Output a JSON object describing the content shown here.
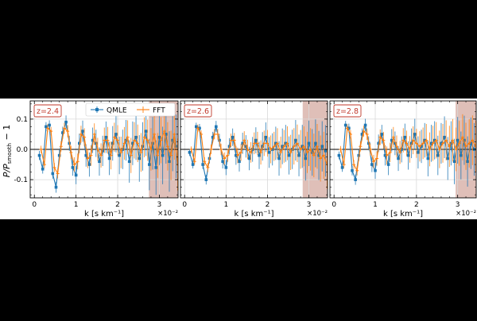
{
  "figure": {
    "background": "#ffffff",
    "ylabel": "P/P_smooth − 1",
    "ylabel_main": "P/P",
    "ylabel_sub": "smooth",
    "ylabel_tail": " − 1"
  },
  "legend": {
    "placement": "top-center of first panel",
    "entries": [
      {
        "name": "QMLE",
        "color": "#1f77b4",
        "marker": "square"
      },
      {
        "name": "FFT",
        "color": "#ff7f0e",
        "marker": "plus"
      }
    ]
  },
  "colors": {
    "qmle": "#1f77b4",
    "fft": "#ff7f0e",
    "shade": "#d4a9a0",
    "label_box": "#c0392b",
    "grid": "#d9d9d9",
    "zero_line": "#000000"
  },
  "chart_data": [
    {
      "type": "line",
      "title": "z=2.4",
      "xlabel": "k [s km⁻¹]",
      "x_multiplier": "×10⁻²",
      "ylabel": "P/P_smooth − 1",
      "xlim": [
        -0.1,
        3.45
      ],
      "ylim": [
        -0.16,
        0.16
      ],
      "xticks": [
        0,
        1,
        2,
        3
      ],
      "yticks": [
        -0.1,
        0.0,
        0.1
      ],
      "shaded_x": [
        2.75,
        3.45
      ],
      "grid": true,
      "series": [
        {
          "name": "QMLE",
          "x": [
            0.12,
            0.2,
            0.28,
            0.36,
            0.44,
            0.52,
            0.6,
            0.68,
            0.76,
            0.84,
            0.92,
            1.0,
            1.08,
            1.16,
            1.24,
            1.32,
            1.4,
            1.48,
            1.56,
            1.64,
            1.72,
            1.8,
            1.88,
            1.96,
            2.04,
            2.12,
            2.2,
            2.28,
            2.36,
            2.44,
            2.52,
            2.6,
            2.68,
            2.76,
            2.84,
            2.92,
            3.0,
            3.08,
            3.16,
            3.24,
            3.32,
            3.4
          ],
          "y": [
            -0.02,
            -0.065,
            0.075,
            0.08,
            -0.08,
            -0.125,
            -0.02,
            0.055,
            0.09,
            0.02,
            -0.06,
            -0.085,
            0.02,
            0.06,
            -0.02,
            -0.05,
            0.03,
            0.02,
            -0.04,
            -0.005,
            0.04,
            -0.03,
            0.02,
            0.05,
            -0.02,
            0.0,
            0.03,
            -0.04,
            0.02,
            0.04,
            -0.03,
            0.01,
            0.06,
            -0.05,
            0.02,
            -0.06,
            0.04,
            -0.02,
            0.05,
            -0.04,
            0.03,
            0.01
          ],
          "yerr": [
            0.015,
            0.015,
            0.015,
            0.016,
            0.017,
            0.018,
            0.018,
            0.02,
            0.022,
            0.025,
            0.027,
            0.03,
            0.032,
            0.035,
            0.037,
            0.04,
            0.042,
            0.045,
            0.047,
            0.05,
            0.052,
            0.055,
            0.057,
            0.06,
            0.062,
            0.065,
            0.067,
            0.07,
            0.072,
            0.075,
            0.077,
            0.08,
            0.082,
            0.085,
            0.087,
            0.09,
            0.092,
            0.095,
            0.097,
            0.1,
            0.102,
            0.105
          ]
        },
        {
          "name": "FFT",
          "x": [
            0.16,
            0.24,
            0.32,
            0.4,
            0.48,
            0.56,
            0.64,
            0.72,
            0.8,
            0.88,
            0.96,
            1.04,
            1.12,
            1.2,
            1.28,
            1.36,
            1.44,
            1.52,
            1.6,
            1.68,
            1.76,
            1.84,
            1.92,
            2.0,
            2.08,
            2.16,
            2.24,
            2.32,
            2.4,
            2.48,
            2.56,
            2.64,
            2.72,
            2.8,
            2.88,
            2.96,
            3.04,
            3.12,
            3.2,
            3.28,
            3.36,
            3.44
          ],
          "y": [
            0.0,
            -0.05,
            0.07,
            0.06,
            -0.06,
            -0.08,
            0.01,
            0.07,
            0.06,
            -0.01,
            -0.05,
            -0.04,
            0.05,
            0.04,
            -0.03,
            -0.02,
            0.05,
            0.0,
            -0.02,
            0.03,
            0.03,
            -0.02,
            0.04,
            0.03,
            -0.01,
            0.02,
            0.04,
            -0.02,
            0.03,
            0.02,
            -0.01,
            0.04,
            0.03,
            0.0,
            0.05,
            -0.02,
            0.03,
            0.06,
            0.01,
            -0.02,
            0.05,
            -0.05
          ],
          "yerr": [
            0.012,
            0.012,
            0.013,
            0.014,
            0.015,
            0.016,
            0.017,
            0.018,
            0.02,
            0.022,
            0.024,
            0.026,
            0.028,
            0.03,
            0.032,
            0.034,
            0.036,
            0.038,
            0.04,
            0.042,
            0.044,
            0.046,
            0.048,
            0.05,
            0.052,
            0.054,
            0.056,
            0.058,
            0.06,
            0.062,
            0.064,
            0.066,
            0.068,
            0.07,
            0.072,
            0.074,
            0.076,
            0.078,
            0.08,
            0.082,
            0.084,
            0.086
          ]
        }
      ]
    },
    {
      "type": "line",
      "title": "z=2.6",
      "xlabel": "k [s km⁻¹]",
      "x_multiplier": "×10⁻²",
      "ylabel": "",
      "xlim": [
        -0.1,
        3.45
      ],
      "ylim": [
        -0.16,
        0.16
      ],
      "xticks": [
        0,
        1,
        2,
        3
      ],
      "yticks": [
        -0.1,
        0.0,
        0.1
      ],
      "shaded_x": [
        2.85,
        3.45
      ],
      "grid": true,
      "series": [
        {
          "name": "QMLE",
          "x": [
            0.12,
            0.2,
            0.28,
            0.36,
            0.44,
            0.52,
            0.6,
            0.68,
            0.76,
            0.84,
            0.92,
            1.0,
            1.08,
            1.16,
            1.24,
            1.32,
            1.4,
            1.48,
            1.56,
            1.64,
            1.72,
            1.8,
            1.88,
            1.96,
            2.04,
            2.12,
            2.2,
            2.28,
            2.36,
            2.44,
            2.52,
            2.6,
            2.68,
            2.76,
            2.84,
            2.92,
            3.0,
            3.08,
            3.16,
            3.24,
            3.32,
            3.4
          ],
          "y": [
            -0.01,
            -0.05,
            0.075,
            0.07,
            -0.05,
            -0.1,
            -0.03,
            0.04,
            0.075,
            0.03,
            -0.04,
            -0.06,
            0.01,
            0.04,
            -0.02,
            -0.04,
            0.02,
            0.01,
            -0.03,
            0.0,
            0.03,
            -0.02,
            0.01,
            0.04,
            -0.01,
            0.0,
            0.02,
            -0.03,
            0.01,
            0.02,
            -0.02,
            0.0,
            0.03,
            -0.02,
            0.01,
            -0.03,
            0.02,
            -0.01,
            0.02,
            -0.02,
            0.01,
            -0.005
          ],
          "yerr": [
            0.012,
            0.013,
            0.013,
            0.014,
            0.015,
            0.016,
            0.017,
            0.018,
            0.019,
            0.021,
            0.023,
            0.025,
            0.027,
            0.029,
            0.031,
            0.033,
            0.035,
            0.037,
            0.039,
            0.041,
            0.043,
            0.045,
            0.047,
            0.049,
            0.051,
            0.053,
            0.055,
            0.057,
            0.059,
            0.061,
            0.063,
            0.065,
            0.067,
            0.069,
            0.071,
            0.073,
            0.075,
            0.077,
            0.079,
            0.081,
            0.083,
            0.085
          ]
        },
        {
          "name": "FFT",
          "x": [
            0.16,
            0.24,
            0.32,
            0.4,
            0.48,
            0.56,
            0.64,
            0.72,
            0.8,
            0.88,
            0.96,
            1.04,
            1.12,
            1.2,
            1.28,
            1.36,
            1.44,
            1.52,
            1.6,
            1.68,
            1.76,
            1.84,
            1.92,
            2.0,
            2.08,
            2.16,
            2.24,
            2.32,
            2.4,
            2.48,
            2.56,
            2.64,
            2.72,
            2.8,
            2.88,
            2.96,
            3.04,
            3.12,
            3.2,
            3.28,
            3.36,
            3.44
          ],
          "y": [
            0.0,
            -0.04,
            0.07,
            0.05,
            -0.04,
            -0.06,
            0.0,
            0.05,
            0.05,
            0.0,
            -0.03,
            -0.02,
            0.03,
            0.03,
            -0.02,
            -0.01,
            0.03,
            0.0,
            -0.01,
            0.02,
            0.02,
            -0.01,
            0.02,
            0.02,
            0.0,
            0.01,
            0.02,
            -0.01,
            0.01,
            0.02,
            -0.01,
            0.01,
            0.02,
            0.0,
            0.01,
            -0.01,
            0.0,
            -0.02,
            0.01,
            -0.03,
            -0.02,
            -0.05
          ],
          "yerr": [
            0.01,
            0.011,
            0.012,
            0.013,
            0.014,
            0.015,
            0.016,
            0.017,
            0.018,
            0.019,
            0.02,
            0.021,
            0.022,
            0.024,
            0.026,
            0.028,
            0.03,
            0.032,
            0.034,
            0.036,
            0.038,
            0.04,
            0.042,
            0.044,
            0.046,
            0.048,
            0.05,
            0.052,
            0.054,
            0.056,
            0.058,
            0.06,
            0.062,
            0.064,
            0.066,
            0.068,
            0.07,
            0.072,
            0.074,
            0.076,
            0.078,
            0.08
          ]
        }
      ]
    },
    {
      "type": "line",
      "title": "z=2.8",
      "xlabel": "k [s km⁻¹]",
      "x_multiplier": "×10⁻²",
      "ylabel": "",
      "xlim": [
        -0.1,
        3.45
      ],
      "ylim": [
        -0.16,
        0.16
      ],
      "xticks": [
        0,
        1,
        2,
        3
      ],
      "yticks": [
        -0.1,
        0.0,
        0.1
      ],
      "shaded_x": [
        2.95,
        3.45
      ],
      "grid": true,
      "series": [
        {
          "name": "QMLE",
          "x": [
            0.12,
            0.2,
            0.28,
            0.36,
            0.44,
            0.52,
            0.6,
            0.68,
            0.76,
            0.84,
            0.92,
            1.0,
            1.08,
            1.16,
            1.24,
            1.32,
            1.4,
            1.48,
            1.56,
            1.64,
            1.72,
            1.8,
            1.88,
            1.96,
            2.04,
            2.12,
            2.2,
            2.28,
            2.36,
            2.44,
            2.52,
            2.6,
            2.68,
            2.76,
            2.84,
            2.92,
            3.0,
            3.08,
            3.16,
            3.24,
            3.32,
            3.4
          ],
          "y": [
            -0.02,
            -0.06,
            0.08,
            0.07,
            -0.07,
            -0.1,
            -0.02,
            0.05,
            0.08,
            0.02,
            -0.05,
            -0.07,
            0.02,
            0.05,
            -0.02,
            -0.05,
            0.03,
            0.02,
            -0.03,
            0.0,
            0.04,
            -0.02,
            0.02,
            0.05,
            -0.01,
            0.01,
            0.03,
            -0.03,
            0.02,
            0.03,
            -0.02,
            0.02,
            0.04,
            -0.03,
            0.02,
            -0.04,
            0.03,
            -0.02,
            0.03,
            -0.04,
            0.02,
            0.0
          ],
          "yerr": [
            0.013,
            0.014,
            0.014,
            0.015,
            0.016,
            0.017,
            0.018,
            0.019,
            0.021,
            0.023,
            0.025,
            0.027,
            0.029,
            0.031,
            0.033,
            0.035,
            0.037,
            0.039,
            0.041,
            0.043,
            0.045,
            0.047,
            0.049,
            0.051,
            0.053,
            0.055,
            0.057,
            0.059,
            0.061,
            0.063,
            0.065,
            0.067,
            0.069,
            0.071,
            0.073,
            0.075,
            0.077,
            0.079,
            0.081,
            0.083,
            0.085,
            0.087
          ]
        },
        {
          "name": "FFT",
          "x": [
            0.16,
            0.24,
            0.32,
            0.4,
            0.48,
            0.56,
            0.64,
            0.72,
            0.8,
            0.88,
            0.96,
            1.04,
            1.12,
            1.2,
            1.28,
            1.36,
            1.44,
            1.52,
            1.6,
            1.68,
            1.76,
            1.84,
            1.92,
            2.0,
            2.08,
            2.16,
            2.24,
            2.32,
            2.4,
            2.48,
            2.56,
            2.64,
            2.72,
            2.8,
            2.88,
            2.96,
            3.04,
            3.12,
            3.2,
            3.28,
            3.36,
            3.44
          ],
          "y": [
            0.0,
            -0.05,
            0.07,
            0.05,
            -0.05,
            -0.07,
            0.01,
            0.06,
            0.05,
            0.0,
            -0.04,
            -0.03,
            0.04,
            0.03,
            -0.02,
            -0.01,
            0.04,
            0.01,
            -0.01,
            0.03,
            0.02,
            0.0,
            0.03,
            0.02,
            0.01,
            0.02,
            0.03,
            0.0,
            0.02,
            0.03,
            0.0,
            0.02,
            0.03,
            0.01,
            0.03,
            0.0,
            0.02,
            0.04,
            0.01,
            0.02,
            0.03,
            0.01
          ],
          "yerr": [
            0.011,
            0.012,
            0.013,
            0.014,
            0.015,
            0.016,
            0.017,
            0.018,
            0.019,
            0.02,
            0.022,
            0.024,
            0.026,
            0.028,
            0.03,
            0.032,
            0.034,
            0.036,
            0.038,
            0.04,
            0.042,
            0.044,
            0.046,
            0.048,
            0.05,
            0.052,
            0.054,
            0.056,
            0.058,
            0.06,
            0.062,
            0.064,
            0.066,
            0.068,
            0.07,
            0.072,
            0.074,
            0.076,
            0.078,
            0.08,
            0.082,
            0.084
          ]
        }
      ]
    }
  ]
}
